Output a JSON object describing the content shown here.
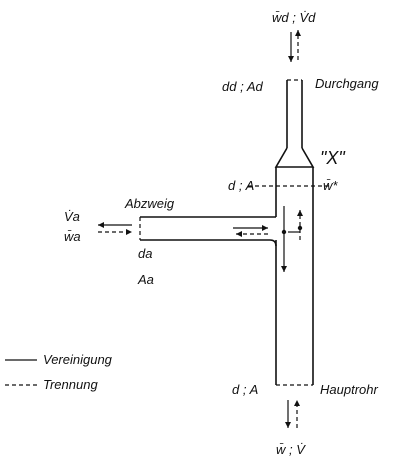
{
  "labels": {
    "top_flow": "w̄d ; V̇d",
    "durchgang_dims": "dd ; Ad",
    "durchgang": "Durchgang",
    "x_mark": "\"X\"",
    "main_section": "d ; A",
    "w_star": "w̄*",
    "abzweig": "Abzweig",
    "branch_flow_v": "V̇a",
    "branch_flow_w": "w̄a",
    "branch_d": "da",
    "branch_a": "Aa",
    "legend_solid": "Vereinigung",
    "legend_dashed": "Trennung",
    "bottom_dims": "d ; A",
    "hauptrohr": "Hauptrohr",
    "bottom_flow": "w̄ ; V̇"
  }
}
